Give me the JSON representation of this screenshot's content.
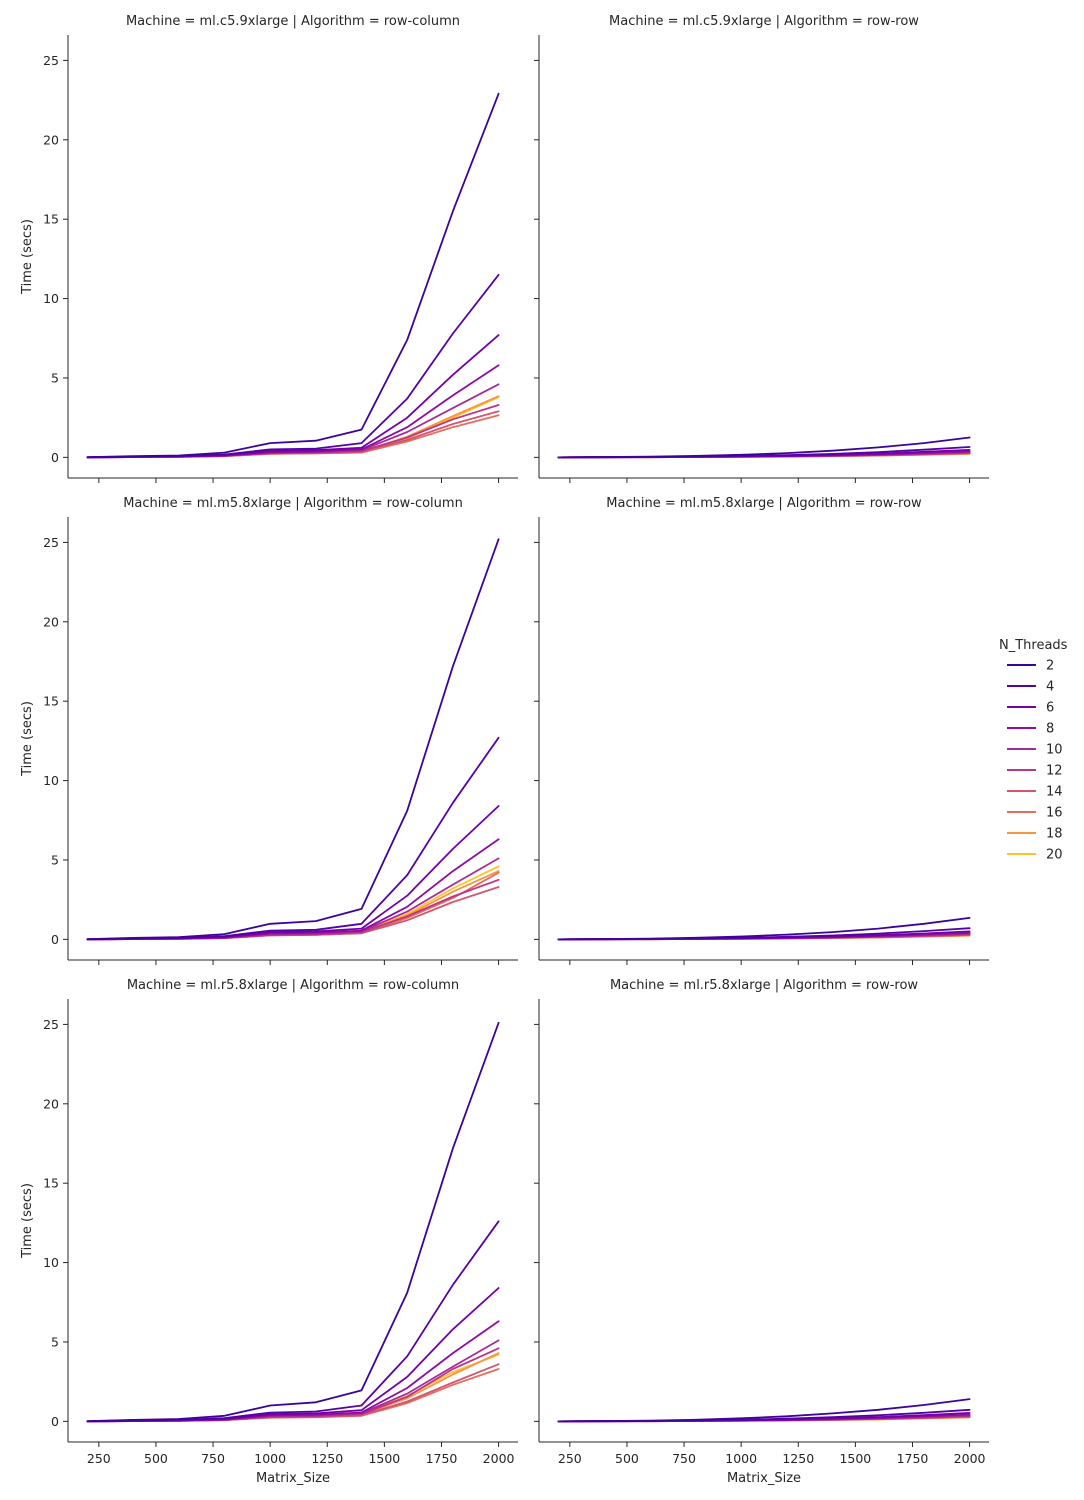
{
  "chart_data": {
    "type": "line",
    "facet_grid": {
      "rows": 3,
      "cols": 2
    },
    "x": [
      200,
      400,
      600,
      800,
      1000,
      1200,
      1400,
      1600,
      1800,
      2000
    ],
    "xlabel": "Matrix_Size",
    "ylabel": "Time (secs)",
    "xticks": [
      250,
      500,
      750,
      1000,
      1250,
      1500,
      1750,
      2000
    ],
    "yticks": [
      0,
      5,
      10,
      15,
      20,
      25
    ],
    "xlim": [
      115,
      2085
    ],
    "ylim": [
      -1.3,
      26.6
    ],
    "legend": {
      "title": "N_Threads",
      "placement": "right",
      "entries": [
        "2",
        "4",
        "6",
        "8",
        "10",
        "12",
        "14",
        "16",
        "18",
        "20"
      ],
      "colors": [
        "#3b049a",
        "#5502a4",
        "#7201a8",
        "#8e0ca4",
        "#a52c96",
        "#bc3587",
        "#d5546e",
        "#e66c5c",
        "#f89540",
        "#fdc328"
      ]
    },
    "panels": [
      {
        "title": "Machine = ml.c5.9xlarge | Algorithm = row-column",
        "series": [
          {
            "name": "2",
            "values": [
              0.01,
              0.08,
              0.12,
              0.3,
              0.9,
              1.05,
              1.75,
              7.4,
              15.5,
              22.9
            ]
          },
          {
            "name": "4",
            "values": [
              0.01,
              0.04,
              0.08,
              0.18,
              0.5,
              0.55,
              0.9,
              3.7,
              7.8,
              11.5
            ]
          },
          {
            "name": "6",
            "values": [
              0.0,
              0.03,
              0.06,
              0.14,
              0.4,
              0.45,
              0.6,
              2.5,
              5.2,
              7.7
            ]
          },
          {
            "name": "8",
            "values": [
              0.0,
              0.02,
              0.05,
              0.11,
              0.32,
              0.38,
              0.5,
              1.9,
              3.9,
              5.8
            ]
          },
          {
            "name": "10",
            "values": [
              0.0,
              0.02,
              0.04,
              0.1,
              0.3,
              0.33,
              0.45,
              1.6,
              3.1,
              4.6
            ]
          },
          {
            "name": "12",
            "values": [
              0.0,
              0.02,
              0.04,
              0.09,
              0.27,
              0.3,
              0.4,
              1.25,
              2.4,
              3.3
            ]
          },
          {
            "name": "14",
            "values": [
              0.0,
              0.02,
              0.03,
              0.08,
              0.24,
              0.27,
              0.35,
              1.1,
              2.1,
              2.9
            ]
          },
          {
            "name": "16",
            "values": [
              0.0,
              0.02,
              0.03,
              0.08,
              0.22,
              0.25,
              0.3,
              1.0,
              1.9,
              2.65
            ]
          },
          {
            "name": "18",
            "values": [
              0.0,
              0.02,
              0.03,
              0.08,
              0.23,
              0.26,
              0.32,
              1.3,
              2.6,
              3.85
            ]
          },
          {
            "name": "20",
            "values": [
              0.0,
              0.02,
              0.03,
              0.08,
              0.22,
              0.25,
              0.3,
              1.2,
              2.5,
              3.8
            ]
          }
        ]
      },
      {
        "title": "Machine = ml.c5.9xlarge | Algorithm = row-row",
        "series": [
          {
            "name": "2",
            "values": [
              0.0,
              0.02,
              0.05,
              0.09,
              0.16,
              0.27,
              0.42,
              0.63,
              0.9,
              1.25
            ]
          },
          {
            "name": "4",
            "values": [
              0.0,
              0.01,
              0.03,
              0.05,
              0.09,
              0.14,
              0.22,
              0.33,
              0.48,
              0.65
            ]
          },
          {
            "name": "6",
            "values": [
              0.0,
              0.01,
              0.02,
              0.04,
              0.07,
              0.1,
              0.16,
              0.24,
              0.35,
              0.47
            ]
          },
          {
            "name": "8",
            "values": [
              0.0,
              0.01,
              0.02,
              0.03,
              0.05,
              0.08,
              0.13,
              0.19,
              0.28,
              0.38
            ]
          },
          {
            "name": "10",
            "values": [
              0.0,
              0.01,
              0.02,
              0.03,
              0.05,
              0.07,
              0.11,
              0.17,
              0.24,
              0.33
            ]
          },
          {
            "name": "12",
            "values": [
              0.0,
              0.01,
              0.01,
              0.03,
              0.04,
              0.06,
              0.1,
              0.15,
              0.21,
              0.29
            ]
          },
          {
            "name": "14",
            "values": [
              0.0,
              0.01,
              0.01,
              0.02,
              0.04,
              0.06,
              0.09,
              0.13,
              0.19,
              0.26
            ]
          },
          {
            "name": "16",
            "values": [
              0.0,
              0.01,
              0.01,
              0.02,
              0.04,
              0.05,
              0.08,
              0.12,
              0.18,
              0.24
            ]
          },
          {
            "name": "18",
            "values": [
              0.0,
              0.01,
              0.01,
              0.02,
              0.03,
              0.05,
              0.08,
              0.12,
              0.17,
              0.23
            ]
          },
          {
            "name": "20",
            "values": [
              0.0,
              0.01,
              0.01,
              0.02,
              0.03,
              0.05,
              0.07,
              0.11,
              0.16,
              0.22
            ]
          }
        ]
      },
      {
        "title": "Machine = ml.m5.8xlarge | Algorithm = row-column",
        "series": [
          {
            "name": "2",
            "values": [
              0.01,
              0.09,
              0.14,
              0.33,
              0.98,
              1.15,
              1.92,
              8.1,
              17.2,
              25.2
            ]
          },
          {
            "name": "4",
            "values": [
              0.01,
              0.05,
              0.09,
              0.2,
              0.55,
              0.6,
              0.98,
              4.05,
              8.6,
              12.7
            ]
          },
          {
            "name": "6",
            "values": [
              0.0,
              0.03,
              0.07,
              0.15,
              0.45,
              0.5,
              0.68,
              2.75,
              5.7,
              8.4
            ]
          },
          {
            "name": "8",
            "values": [
              0.0,
              0.02,
              0.05,
              0.12,
              0.38,
              0.42,
              0.55,
              2.05,
              4.3,
              6.3
            ]
          },
          {
            "name": "10",
            "values": [
              0.0,
              0.02,
              0.04,
              0.1,
              0.32,
              0.36,
              0.5,
              1.75,
              3.45,
              5.1
            ]
          },
          {
            "name": "12",
            "values": [
              0.0,
              0.02,
              0.04,
              0.09,
              0.28,
              0.32,
              0.45,
              1.45,
              2.7,
              3.75
            ]
          },
          {
            "name": "14",
            "values": [
              0.0,
              0.02,
              0.03,
              0.08,
              0.25,
              0.28,
              0.38,
              1.2,
              2.35,
              3.3
            ]
          },
          {
            "name": "16",
            "values": [
              0.0,
              0.02,
              0.03,
              0.08,
              0.25,
              0.28,
              0.4,
              1.35,
              2.6,
              4.2
            ]
          },
          {
            "name": "18",
            "values": [
              0.0,
              0.02,
              0.03,
              0.08,
              0.26,
              0.3,
              0.42,
              1.5,
              3.0,
              4.3
            ]
          },
          {
            "name": "20",
            "values": [
              0.0,
              0.02,
              0.03,
              0.08,
              0.27,
              0.3,
              0.44,
              1.6,
              3.2,
              4.6
            ]
          }
        ]
      },
      {
        "title": "Machine = ml.m5.8xlarge | Algorithm = row-row",
        "series": [
          {
            "name": "2",
            "values": [
              0.0,
              0.02,
              0.05,
              0.1,
              0.18,
              0.3,
              0.46,
              0.68,
              0.98,
              1.35
            ]
          },
          {
            "name": "4",
            "values": [
              0.0,
              0.01,
              0.03,
              0.06,
              0.1,
              0.16,
              0.24,
              0.36,
              0.52,
              0.7
            ]
          },
          {
            "name": "6",
            "values": [
              0.0,
              0.01,
              0.02,
              0.04,
              0.07,
              0.11,
              0.17,
              0.26,
              0.37,
              0.5
            ]
          },
          {
            "name": "8",
            "values": [
              0.0,
              0.01,
              0.02,
              0.03,
              0.06,
              0.09,
              0.14,
              0.21,
              0.3,
              0.41
            ]
          },
          {
            "name": "10",
            "values": [
              0.0,
              0.01,
              0.02,
              0.03,
              0.05,
              0.08,
              0.12,
              0.18,
              0.26,
              0.35
            ]
          },
          {
            "name": "12",
            "values": [
              0.0,
              0.01,
              0.01,
              0.03,
              0.04,
              0.07,
              0.11,
              0.16,
              0.23,
              0.31
            ]
          },
          {
            "name": "14",
            "values": [
              0.0,
              0.01,
              0.01,
              0.02,
              0.04,
              0.06,
              0.1,
              0.14,
              0.21,
              0.28
            ]
          },
          {
            "name": "16",
            "values": [
              0.0,
              0.01,
              0.01,
              0.02,
              0.04,
              0.06,
              0.09,
              0.13,
              0.19,
              0.26
            ]
          },
          {
            "name": "18",
            "values": [
              0.0,
              0.01,
              0.01,
              0.02,
              0.03,
              0.05,
              0.08,
              0.12,
              0.18,
              0.24
            ]
          },
          {
            "name": "20",
            "values": [
              0.0,
              0.01,
              0.01,
              0.02,
              0.03,
              0.05,
              0.08,
              0.12,
              0.17,
              0.23
            ]
          }
        ]
      },
      {
        "title": "Machine = ml.r5.8xlarge | Algorithm = row-column",
        "series": [
          {
            "name": "2",
            "values": [
              0.01,
              0.09,
              0.15,
              0.35,
              1.0,
              1.2,
              1.95,
              8.1,
              17.2,
              25.1
            ]
          },
          {
            "name": "4",
            "values": [
              0.01,
              0.05,
              0.09,
              0.2,
              0.55,
              0.62,
              1.0,
              4.1,
              8.6,
              12.6
            ]
          },
          {
            "name": "6",
            "values": [
              0.0,
              0.03,
              0.07,
              0.15,
              0.45,
              0.5,
              0.7,
              2.8,
              5.8,
              8.4
            ]
          },
          {
            "name": "8",
            "values": [
              0.0,
              0.02,
              0.05,
              0.12,
              0.38,
              0.42,
              0.56,
              2.1,
              4.3,
              6.3
            ]
          },
          {
            "name": "10",
            "values": [
              0.0,
              0.02,
              0.04,
              0.1,
              0.33,
              0.37,
              0.5,
              1.75,
              3.45,
              5.1
            ]
          },
          {
            "name": "12",
            "values": [
              0.0,
              0.02,
              0.04,
              0.09,
              0.29,
              0.33,
              0.45,
              1.55,
              3.3,
              4.6
            ]
          },
          {
            "name": "14",
            "values": [
              0.0,
              0.02,
              0.03,
              0.08,
              0.25,
              0.28,
              0.38,
              1.25,
              2.45,
              3.6
            ]
          },
          {
            "name": "16",
            "values": [
              0.0,
              0.02,
              0.03,
              0.08,
              0.23,
              0.26,
              0.35,
              1.15,
              2.3,
              3.3
            ]
          },
          {
            "name": "18",
            "values": [
              0.0,
              0.02,
              0.03,
              0.08,
              0.26,
              0.3,
              0.42,
              1.45,
              2.95,
              4.3
            ]
          },
          {
            "name": "20",
            "values": [
              0.0,
              0.02,
              0.03,
              0.08,
              0.27,
              0.3,
              0.44,
              1.6,
              3.1,
              4.2
            ]
          }
        ]
      },
      {
        "title": "Machine = ml.r5.8xlarge | Algorithm = row-row",
        "series": [
          {
            "name": "2",
            "values": [
              0.0,
              0.02,
              0.05,
              0.1,
              0.19,
              0.32,
              0.5,
              0.73,
              1.03,
              1.4
            ]
          },
          {
            "name": "4",
            "values": [
              0.0,
              0.01,
              0.03,
              0.06,
              0.1,
              0.17,
              0.26,
              0.38,
              0.54,
              0.73
            ]
          },
          {
            "name": "6",
            "values": [
              0.0,
              0.01,
              0.02,
              0.04,
              0.07,
              0.12,
              0.18,
              0.27,
              0.39,
              0.53
            ]
          },
          {
            "name": "8",
            "values": [
              0.0,
              0.01,
              0.02,
              0.03,
              0.06,
              0.09,
              0.15,
              0.22,
              0.31,
              0.43
            ]
          },
          {
            "name": "10",
            "values": [
              0.0,
              0.01,
              0.02,
              0.03,
              0.05,
              0.08,
              0.13,
              0.19,
              0.27,
              0.37
            ]
          },
          {
            "name": "12",
            "values": [
              0.0,
              0.01,
              0.01,
              0.03,
              0.05,
              0.07,
              0.11,
              0.17,
              0.24,
              0.33
            ]
          },
          {
            "name": "14",
            "values": [
              0.0,
              0.01,
              0.01,
              0.02,
              0.04,
              0.07,
              0.1,
              0.15,
              0.22,
              0.3
            ]
          },
          {
            "name": "16",
            "values": [
              0.0,
              0.01,
              0.01,
              0.02,
              0.04,
              0.06,
              0.09,
              0.14,
              0.2,
              0.27
            ]
          },
          {
            "name": "18",
            "values": [
              0.0,
              0.01,
              0.01,
              0.02,
              0.04,
              0.06,
              0.09,
              0.13,
              0.19,
              0.26
            ]
          },
          {
            "name": "20",
            "values": [
              0.0,
              0.01,
              0.01,
              0.02,
              0.03,
              0.05,
              0.08,
              0.12,
              0.18,
              0.25
            ]
          }
        ]
      }
    ]
  }
}
